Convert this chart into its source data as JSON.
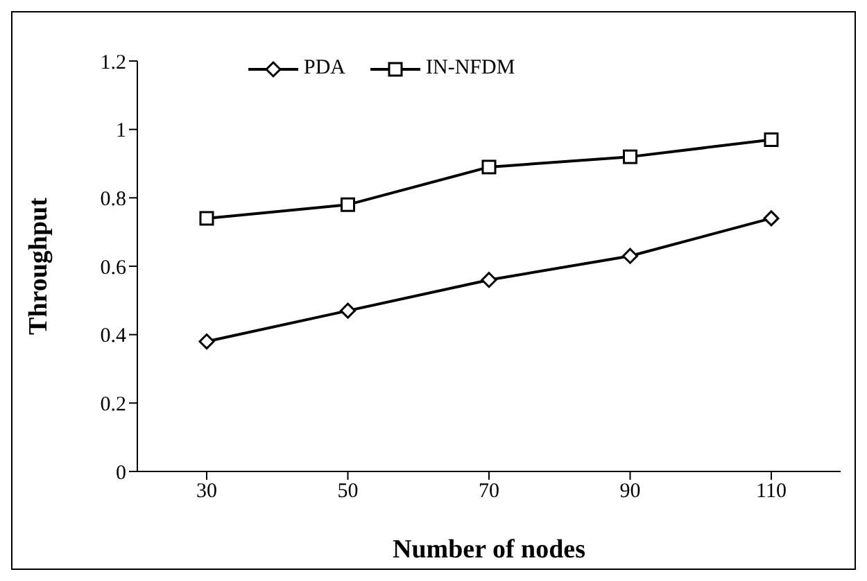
{
  "chart_data": {
    "type": "line",
    "xlabel": "Number of nodes",
    "ylabel": "Throughput",
    "categories": [
      "30",
      "50",
      "70",
      "90",
      "110"
    ],
    "series": [
      {
        "name": "PDA",
        "color": "#000000",
        "marker": "diamond",
        "values": [
          0.38,
          0.47,
          0.56,
          0.63,
          0.74
        ]
      },
      {
        "name": "IN-NFDM",
        "color": "#000000",
        "marker": "square",
        "values": [
          0.74,
          0.78,
          0.89,
          0.92,
          0.97
        ]
      }
    ],
    "ylim": [
      0,
      1.2
    ],
    "yticks": [
      0,
      0.2,
      0.4,
      0.6,
      0.8,
      1,
      1.2
    ],
    "grid": false,
    "legend": "top",
    "line_style": "solid"
  }
}
